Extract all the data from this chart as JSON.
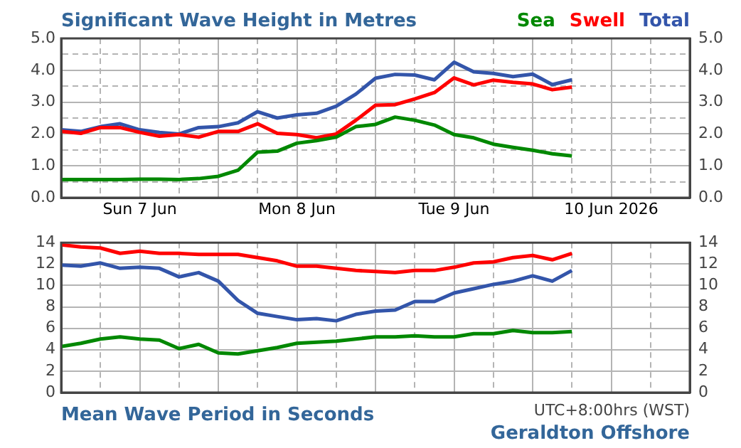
{
  "chart_data": [
    {
      "type": "line",
      "title": "Significant Wave Height in Metres",
      "legend": "top right",
      "grid": true,
      "x": [
        "2026-06-07T00:00",
        "2026-06-07T03:00",
        "2026-06-07T06:00",
        "2026-06-07T09:00",
        "2026-06-07T12:00",
        "2026-06-07T15:00",
        "2026-06-07T18:00",
        "2026-06-07T21:00",
        "2026-06-08T00:00",
        "2026-06-08T03:00",
        "2026-06-08T06:00",
        "2026-06-08T09:00",
        "2026-06-08T12:00",
        "2026-06-08T15:00",
        "2026-06-08T18:00",
        "2026-06-08T21:00",
        "2026-06-09T00:00",
        "2026-06-09T03:00",
        "2026-06-09T06:00",
        "2026-06-09T09:00",
        "2026-06-09T12:00",
        "2026-06-09T15:00",
        "2026-06-09T18:00",
        "2026-06-09T21:00",
        "2026-06-10T00:00",
        "2026-06-10T03:00",
        "2026-06-10T06:00"
      ],
      "xlim": [
        "2026-06-07T00:00",
        "2026-06-11T00:00"
      ],
      "xticks": [
        {
          "value": "2026-06-07T00:00",
          "label": null
        },
        {
          "value": "2026-06-07T06:00",
          "label": null
        },
        {
          "value": "2026-06-07T12:00",
          "label": "Sun 7 Jun"
        },
        {
          "value": "2026-06-07T18:00",
          "label": null
        },
        {
          "value": "2026-06-08T00:00",
          "label": null
        },
        {
          "value": "2026-06-08T06:00",
          "label": null
        },
        {
          "value": "2026-06-08T12:00",
          "label": "Mon 8 Jun"
        },
        {
          "value": "2026-06-08T18:00",
          "label": null
        },
        {
          "value": "2026-06-09T00:00",
          "label": null
        },
        {
          "value": "2026-06-09T06:00",
          "label": null
        },
        {
          "value": "2026-06-09T12:00",
          "label": "Tue 9 Jun"
        },
        {
          "value": "2026-06-09T18:00",
          "label": null
        },
        {
          "value": "2026-06-10T00:00",
          "label": null
        },
        {
          "value": "2026-06-10T06:00",
          "label": null
        },
        {
          "value": "2026-06-10T12:00",
          "label": "10 Jun 2026"
        },
        {
          "value": "2026-06-10T18:00",
          "label": null
        },
        {
          "value": "2026-06-11T00:00",
          "label": null
        }
      ],
      "ylim": [
        0,
        5
      ],
      "yticks": [
        {
          "value": 0,
          "label": "0.0"
        },
        {
          "value": 0.5,
          "label": null
        },
        {
          "value": 1,
          "label": "1.0"
        },
        {
          "value": 1.5,
          "label": null
        },
        {
          "value": 2,
          "label": "2.0"
        },
        {
          "value": 2.5,
          "label": null
        },
        {
          "value": 3,
          "label": "3.0"
        },
        {
          "value": 3.5,
          "label": null
        },
        {
          "value": 4,
          "label": "4.0"
        },
        {
          "value": 4.5,
          "label": null
        },
        {
          "value": 5,
          "label": "5.0"
        }
      ],
      "y2lim": [
        0,
        5
      ],
      "y2ticks": [
        {
          "value": 0,
          "label": "0.0"
        },
        {
          "value": 0.5,
          "label": null
        },
        {
          "value": 1,
          "label": "1.0"
        },
        {
          "value": 1.5,
          "label": null
        },
        {
          "value": 2,
          "label": "2.0"
        },
        {
          "value": 2.5,
          "label": null
        },
        {
          "value": 3,
          "label": "3.0"
        },
        {
          "value": 3.5,
          "label": null
        },
        {
          "value": 4,
          "label": "4.0"
        },
        {
          "value": 4.5,
          "label": null
        },
        {
          "value": 5,
          "label": "5.0"
        }
      ],
      "series": [
        {
          "name": "Sea",
          "color": "#008800",
          "values": [
            0.57,
            0.57,
            0.57,
            0.57,
            0.58,
            0.58,
            0.57,
            0.6,
            0.67,
            0.86,
            1.43,
            1.46,
            1.71,
            1.79,
            1.9,
            2.23,
            2.3,
            2.53,
            2.43,
            2.28,
            1.98,
            1.88,
            1.68,
            1.58,
            1.49,
            1.38,
            1.31
          ]
        },
        {
          "name": "Swell",
          "color": "#ff0000",
          "values": [
            2.08,
            2.02,
            2.2,
            2.2,
            2.05,
            1.93,
            1.98,
            1.9,
            2.08,
            2.08,
            2.32,
            2.02,
            1.98,
            1.88,
            2.0,
            2.43,
            2.9,
            2.92,
            3.1,
            3.3,
            3.76,
            3.54,
            3.69,
            3.62,
            3.57,
            3.39,
            3.47
          ]
        },
        {
          "name": "Total",
          "color": "#3355aa",
          "values": [
            2.13,
            2.08,
            2.23,
            2.32,
            2.13,
            2.05,
            2.0,
            2.2,
            2.23,
            2.35,
            2.7,
            2.5,
            2.6,
            2.65,
            2.87,
            3.25,
            3.75,
            3.87,
            3.85,
            3.7,
            4.25,
            3.95,
            3.9,
            3.8,
            3.88,
            3.55,
            3.7
          ]
        }
      ]
    },
    {
      "type": "line",
      "title": "Mean Wave Period in Seconds",
      "grid": true,
      "tick_labels": "y",
      "annotations": [
        "UTC+8:00hrs (WST)",
        "Geraldton Offshore"
      ],
      "x": [
        "2026-06-07T00:00",
        "2026-06-07T03:00",
        "2026-06-07T06:00",
        "2026-06-07T09:00",
        "2026-06-07T12:00",
        "2026-06-07T15:00",
        "2026-06-07T18:00",
        "2026-06-07T21:00",
        "2026-06-08T00:00",
        "2026-06-08T03:00",
        "2026-06-08T06:00",
        "2026-06-08T09:00",
        "2026-06-08T12:00",
        "2026-06-08T15:00",
        "2026-06-08T18:00",
        "2026-06-08T21:00",
        "2026-06-09T00:00",
        "2026-06-09T03:00",
        "2026-06-09T06:00",
        "2026-06-09T09:00",
        "2026-06-09T12:00",
        "2026-06-09T15:00",
        "2026-06-09T18:00",
        "2026-06-09T21:00",
        "2026-06-10T00:00",
        "2026-06-10T03:00",
        "2026-06-10T06:00"
      ],
      "xlim": [
        "2026-06-07T00:00",
        "2026-06-11T00:00"
      ],
      "xticks": [
        {
          "value": "2026-06-07T00:00",
          "label": null
        },
        {
          "value": "2026-06-07T06:00",
          "label": null
        },
        {
          "value": "2026-06-07T12:00",
          "label": null
        },
        {
          "value": "2026-06-07T18:00",
          "label": null
        },
        {
          "value": "2026-06-08T00:00",
          "label": null
        },
        {
          "value": "2026-06-08T06:00",
          "label": null
        },
        {
          "value": "2026-06-08T12:00",
          "label": null
        },
        {
          "value": "2026-06-08T18:00",
          "label": null
        },
        {
          "value": "2026-06-09T00:00",
          "label": null
        },
        {
          "value": "2026-06-09T06:00",
          "label": null
        },
        {
          "value": "2026-06-09T12:00",
          "label": null
        },
        {
          "value": "2026-06-09T18:00",
          "label": null
        },
        {
          "value": "2026-06-10T00:00",
          "label": null
        },
        {
          "value": "2026-06-10T06:00",
          "label": null
        },
        {
          "value": "2026-06-10T12:00",
          "label": null
        },
        {
          "value": "2026-06-10T18:00",
          "label": null
        },
        {
          "value": "2026-06-11T00:00",
          "label": null
        }
      ],
      "ylim": [
        0,
        14
      ],
      "yticks": [
        0,
        2,
        4,
        6,
        8,
        10,
        12,
        14
      ],
      "y2lim": [
        0,
        14
      ],
      "y2ticks": [
        0,
        2,
        4,
        6,
        8,
        10,
        12,
        14
      ],
      "series": [
        {
          "color": "#008800",
          "values": [
            4.3,
            4.6,
            5.0,
            5.2,
            5.0,
            4.9,
            4.1,
            4.5,
            3.7,
            3.6,
            3.9,
            4.2,
            4.6,
            4.7,
            4.8,
            5.0,
            5.2,
            5.2,
            5.3,
            5.2,
            5.2,
            5.5,
            5.5,
            5.8,
            5.6,
            5.6,
            5.7
          ]
        },
        {
          "color": "#ff0000",
          "values": [
            13.8,
            13.6,
            13.5,
            13.0,
            13.2,
            13.0,
            13.0,
            12.9,
            12.9,
            12.9,
            12.6,
            12.3,
            11.8,
            11.8,
            11.6,
            11.4,
            11.3,
            11.2,
            11.4,
            11.4,
            11.7,
            12.1,
            12.2,
            12.6,
            12.8,
            12.4,
            13.0
          ]
        },
        {
          "color": "#3355aa",
          "values": [
            11.9,
            11.8,
            12.1,
            11.6,
            11.7,
            11.6,
            10.8,
            11.2,
            10.4,
            8.6,
            7.4,
            7.1,
            6.8,
            6.9,
            6.7,
            7.3,
            7.6,
            7.7,
            8.5,
            8.5,
            9.3,
            9.7,
            10.1,
            10.4,
            10.9,
            10.4,
            11.4
          ]
        }
      ]
    }
  ]
}
